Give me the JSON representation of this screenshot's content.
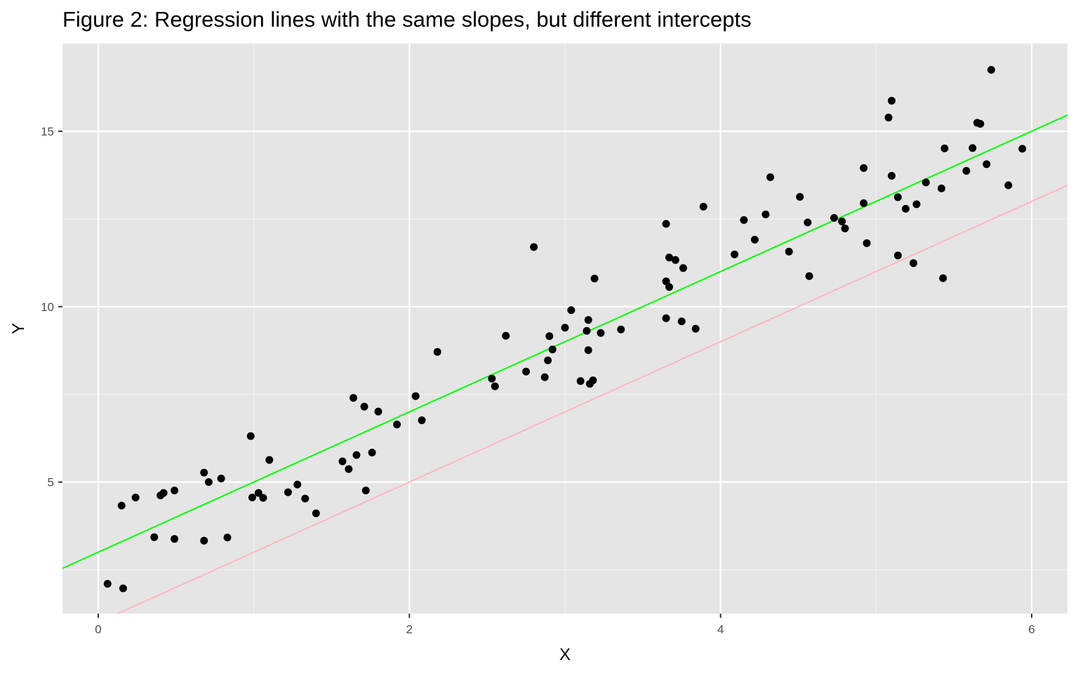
{
  "chart_data": {
    "type": "scatter",
    "title": "Figure 2: Regression lines with the same slopes, but different intercepts",
    "xlabel": "X",
    "ylabel": "Y",
    "xlim": [
      -0.23,
      6.23
    ],
    "ylim": [
      1.25,
      17.5
    ],
    "x_ticks": [
      0,
      2,
      4,
      6
    ],
    "y_ticks": [
      5,
      10,
      15
    ],
    "grid": true,
    "panel_background": "#e5e5e5",
    "grid_color": "#ffffff",
    "legend": "none",
    "series": [
      {
        "kind": "points",
        "color": "#000000",
        "points": [
          [
            0.06,
            2.1
          ],
          [
            0.16,
            1.97
          ],
          [
            0.15,
            4.33
          ],
          [
            0.24,
            4.56
          ],
          [
            0.36,
            3.43
          ],
          [
            0.4,
            4.62
          ],
          [
            0.42,
            4.69
          ],
          [
            0.49,
            4.76
          ],
          [
            0.49,
            3.38
          ],
          [
            0.68,
            3.33
          ],
          [
            0.68,
            5.27
          ],
          [
            0.71,
            5.0
          ],
          [
            0.79,
            5.1
          ],
          [
            0.83,
            3.42
          ],
          [
            0.98,
            6.31
          ],
          [
            0.99,
            4.56
          ],
          [
            1.03,
            4.69
          ],
          [
            1.06,
            4.55
          ],
          [
            1.1,
            5.63
          ],
          [
            1.22,
            4.71
          ],
          [
            1.28,
            4.93
          ],
          [
            1.33,
            4.53
          ],
          [
            1.4,
            4.11
          ],
          [
            1.57,
            5.59
          ],
          [
            1.61,
            5.37
          ],
          [
            1.64,
            7.4
          ],
          [
            1.66,
            5.77
          ],
          [
            1.71,
            7.15
          ],
          [
            1.72,
            4.76
          ],
          [
            1.76,
            5.84
          ],
          [
            1.8,
            7.01
          ],
          [
            1.92,
            6.64
          ],
          [
            2.04,
            7.45
          ],
          [
            2.08,
            6.76
          ],
          [
            2.18,
            8.71
          ],
          [
            2.53,
            7.95
          ],
          [
            2.55,
            7.73
          ],
          [
            2.62,
            9.17
          ],
          [
            2.75,
            8.15
          ],
          [
            2.8,
            11.7
          ],
          [
            2.87,
            7.99
          ],
          [
            2.89,
            8.47
          ],
          [
            2.9,
            9.16
          ],
          [
            2.92,
            8.78
          ],
          [
            3.0,
            9.4
          ],
          [
            3.04,
            9.9
          ],
          [
            3.1,
            7.88
          ],
          [
            3.14,
            9.31
          ],
          [
            3.15,
            9.62
          ],
          [
            3.15,
            8.76
          ],
          [
            3.16,
            7.8
          ],
          [
            3.18,
            7.9
          ],
          [
            3.19,
            10.8
          ],
          [
            3.23,
            9.25
          ],
          [
            3.36,
            9.35
          ],
          [
            3.65,
            12.36
          ],
          [
            3.65,
            10.72
          ],
          [
            3.65,
            9.67
          ],
          [
            3.67,
            10.56
          ],
          [
            3.67,
            11.4
          ],
          [
            3.71,
            11.33
          ],
          [
            3.75,
            9.58
          ],
          [
            3.76,
            11.1
          ],
          [
            3.84,
            9.37
          ],
          [
            3.89,
            12.85
          ],
          [
            4.09,
            11.49
          ],
          [
            4.15,
            12.47
          ],
          [
            4.22,
            11.91
          ],
          [
            4.29,
            12.63
          ],
          [
            4.32,
            13.69
          ],
          [
            4.44,
            11.57
          ],
          [
            4.51,
            13.13
          ],
          [
            4.56,
            12.4
          ],
          [
            4.57,
            10.87
          ],
          [
            4.73,
            12.53
          ],
          [
            4.78,
            12.43
          ],
          [
            4.8,
            12.23
          ],
          [
            4.92,
            12.95
          ],
          [
            4.92,
            13.95
          ],
          [
            4.94,
            11.81
          ],
          [
            5.08,
            15.39
          ],
          [
            5.1,
            15.87
          ],
          [
            5.1,
            13.73
          ],
          [
            5.14,
            11.46
          ],
          [
            5.14,
            13.12
          ],
          [
            5.19,
            12.79
          ],
          [
            5.24,
            11.24
          ],
          [
            5.26,
            12.92
          ],
          [
            5.32,
            13.54
          ],
          [
            5.42,
            13.37
          ],
          [
            5.43,
            10.81
          ],
          [
            5.44,
            14.51
          ],
          [
            5.58,
            13.87
          ],
          [
            5.62,
            14.52
          ],
          [
            5.65,
            15.24
          ],
          [
            5.67,
            15.21
          ],
          [
            5.71,
            14.06
          ],
          [
            5.74,
            16.75
          ],
          [
            5.85,
            13.46
          ],
          [
            5.94,
            14.5
          ]
        ]
      },
      {
        "kind": "line",
        "color": "#00ff00",
        "intercept": 3,
        "slope": 2
      },
      {
        "kind": "line",
        "color": "#ffb6c1",
        "intercept": 1,
        "slope": 2
      }
    ]
  }
}
